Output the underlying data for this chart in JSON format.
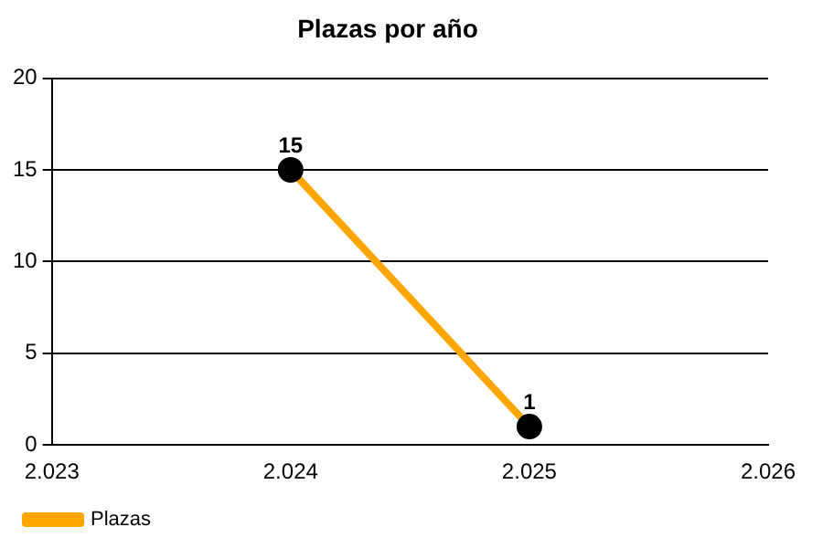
{
  "chart_data": {
    "type": "line",
    "title": "Plazas por año",
    "x": [
      2024,
      2025
    ],
    "series": [
      {
        "name": "Plazas",
        "color": "#ffa500",
        "values": [
          15,
          1
        ]
      }
    ],
    "xlim": [
      2023,
      2026
    ],
    "xticks": [
      {
        "value": 2023,
        "label": "2.023"
      },
      {
        "value": 2024,
        "label": "2.024"
      },
      {
        "value": 2025,
        "label": "2.025"
      },
      {
        "value": 2026,
        "label": "2.026"
      }
    ],
    "ylim": [
      0,
      20
    ],
    "yticks": [
      0,
      5,
      10,
      15,
      20
    ],
    "grid": "y",
    "legend": "bottom left",
    "marker": "circle",
    "line_style": "solid",
    "data_labels": true
  }
}
